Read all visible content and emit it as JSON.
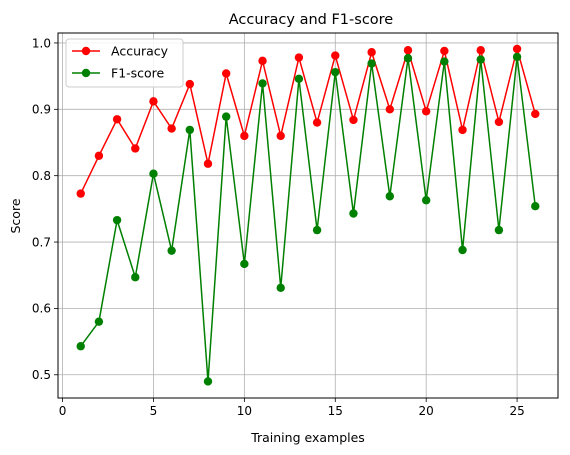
{
  "chart_data": {
    "type": "line",
    "title": "Accuracy and F1-score",
    "xlabel": "Training examples",
    "ylabel": "Score",
    "xlim": [
      -0.25,
      27.25
    ],
    "ylim": [
      0.465,
      1.015
    ],
    "xticks": [
      0,
      5,
      10,
      15,
      20,
      25
    ],
    "yticks": [
      0.5,
      0.6,
      0.7,
      0.8,
      0.9,
      1.0
    ],
    "ytick_labels": [
      "0.5",
      "0.6",
      "0.7",
      "0.8",
      "0.9",
      "1.0"
    ],
    "grid": true,
    "legend_position": "top-left",
    "x": [
      1,
      2,
      3,
      4,
      5,
      6,
      7,
      8,
      9,
      10,
      11,
      12,
      13,
      14,
      15,
      16,
      17,
      18,
      19,
      20,
      21,
      22,
      23,
      24,
      25,
      26
    ],
    "series": [
      {
        "name": "Accuracy",
        "color": "#ff0000",
        "values": [
          0.773,
          0.83,
          0.885,
          0.841,
          0.912,
          0.871,
          0.938,
          0.818,
          0.954,
          0.86,
          0.973,
          0.86,
          0.978,
          0.88,
          0.981,
          0.884,
          0.986,
          0.9,
          0.989,
          0.897,
          0.988,
          0.869,
          0.989,
          0.881,
          0.991,
          0.893
        ]
      },
      {
        "name": "F1-score",
        "color": "#008000",
        "values": [
          0.543,
          0.58,
          0.733,
          0.647,
          0.803,
          0.687,
          0.869,
          0.49,
          0.889,
          0.667,
          0.939,
          0.631,
          0.946,
          0.718,
          0.956,
          0.743,
          0.969,
          0.769,
          0.977,
          0.763,
          0.972,
          0.688,
          0.975,
          0.718,
          0.979,
          0.754
        ]
      }
    ]
  }
}
